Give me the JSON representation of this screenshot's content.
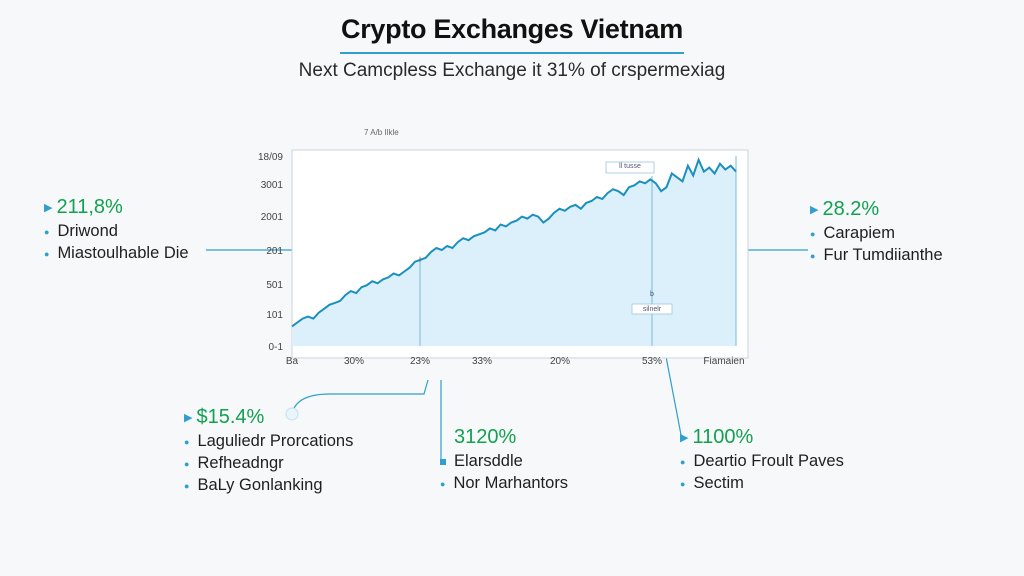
{
  "header": {
    "title": "Crypto Exchanges Vietnam",
    "subtitle": "Next Camcpless Exchange  it 31% of crspermexiag"
  },
  "chart_caption": "7 A/b Ilkle",
  "chart_data": {
    "type": "area",
    "y_tick_labels": [
      "18/09",
      "3001",
      "2001",
      "201",
      "501",
      "101",
      "0-1"
    ],
    "x_tick_labels": [
      "Ba",
      "30%",
      "23%",
      "33%",
      "20%",
      "53%",
      "Fiamaien"
    ],
    "series": [
      {
        "values": [
          10,
          12,
          14,
          15,
          14,
          17,
          19,
          21,
          22,
          23,
          26,
          28,
          27,
          30,
          31,
          33,
          32,
          34,
          35,
          37,
          36,
          38,
          40,
          43,
          44,
          45,
          48,
          50,
          49,
          51,
          50,
          53,
          55,
          54,
          56,
          57,
          58,
          60,
          59,
          62,
          61,
          63,
          64,
          66,
          65,
          67,
          66,
          63,
          65,
          68,
          70,
          69,
          71,
          72,
          70,
          73,
          74,
          76,
          75,
          78,
          80,
          79,
          77,
          81,
          82,
          84,
          83,
          85,
          83,
          79,
          81,
          88,
          86,
          84,
          92,
          87,
          95,
          89,
          91,
          88,
          93,
          90,
          92,
          89
        ]
      }
    ],
    "annotations": [
      "ll tusse",
      "l",
      "b",
      "silnelr"
    ],
    "grid": false
  },
  "callouts": {
    "left_top": {
      "pct": "211,8%",
      "items": [
        "Driwond",
        "Miastoulhable Die"
      ]
    },
    "right_top": {
      "pct": "28.2%",
      "items": [
        "Carapiem",
        "Fur Tumdiianthe"
      ]
    },
    "bottom_left": {
      "pct": "$15.4%",
      "items": [
        "Laguliedr Prorcations",
        "Refheadngr",
        "BaLy Gonlanking"
      ]
    },
    "bottom_mid": {
      "pct": "3120%",
      "items": [
        "Elarsddle",
        "Nor Marhantors"
      ]
    },
    "bottom_right": {
      "pct": "1100%",
      "items": [
        "Deartio Froult Paves",
        "Sectim"
      ]
    }
  },
  "colors": {
    "line": "#1a8fc0",
    "area_fill": "#dcf0fb",
    "accent": "#2f9fcd",
    "pct_green": "#12a150"
  }
}
